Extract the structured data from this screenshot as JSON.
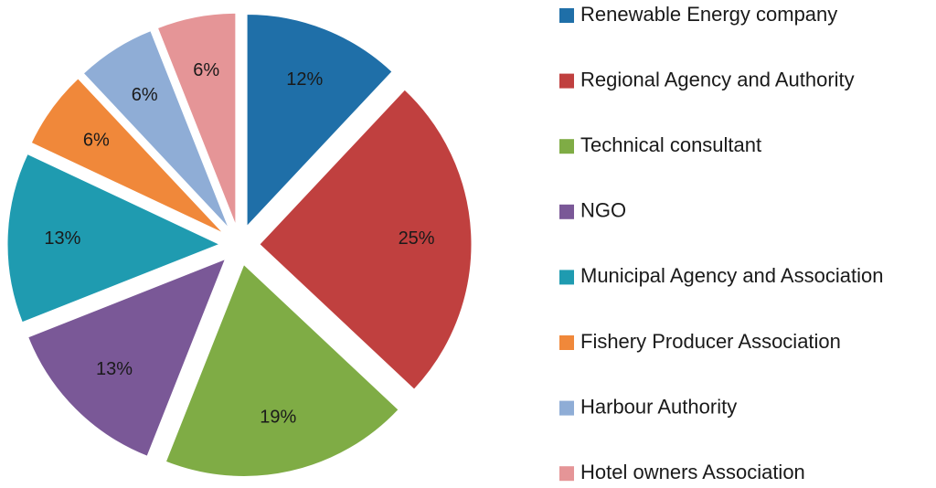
{
  "chart_data": {
    "type": "pie",
    "categories": [
      "Renewable Energy company",
      "Regional Agency and Authority",
      "Technical consultant",
      "NGO",
      "Municipal Agency and Association",
      "Fishery Producer Association",
      "Harbour Authority",
      "Hotel owners Association"
    ],
    "values": [
      12,
      25,
      19,
      13,
      13,
      6,
      6,
      6
    ],
    "value_labels": [
      "12%",
      "25%",
      "19%",
      "13%",
      "13%",
      "6%",
      "6%",
      "6%"
    ],
    "colors": [
      "#1f6fa8",
      "#c0403f",
      "#7fac45",
      "#7a5897",
      "#1f9bb0",
      "#f0883a",
      "#8fadd6",
      "#e59597"
    ],
    "legend": "right"
  }
}
